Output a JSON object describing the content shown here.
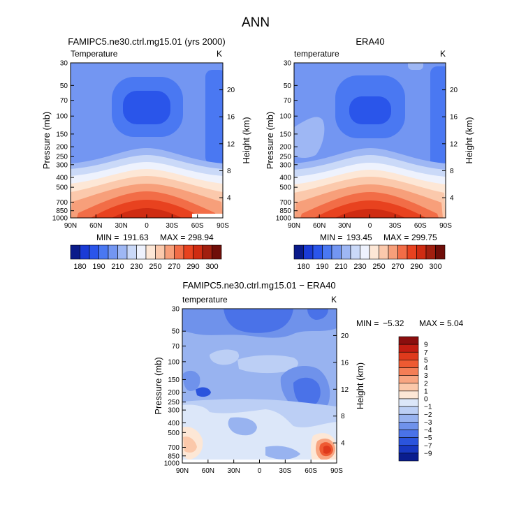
{
  "figure_title": "ANN",
  "chart_data": [
    {
      "type": "heatmap",
      "title": "FAMIPC5.ne30.ctrl.mg15.01 (yrs 2000)",
      "subtitle": "Temperature",
      "units": "K",
      "ylabel": "Pressure (mb)",
      "y2label": "Height (km)",
      "x_ticks": [
        "90N",
        "60N",
        "30N",
        "0",
        "30S",
        "60S",
        "90S"
      ],
      "y_ticks": [
        "30",
        "50",
        "70",
        "100",
        "150",
        "200",
        "250",
        "300",
        "400",
        "500",
        "700",
        "850",
        "1000"
      ],
      "y2_ticks": [
        "20",
        "16",
        "12",
        "8",
        "4"
      ],
      "stats": {
        "min_label": "MIN =",
        "min": "191.63",
        "max_label": "MAX =",
        "max": "298.94"
      },
      "colorbar": {
        "orientation": "horizontal",
        "labels": [
          "180",
          "190",
          "210",
          "230",
          "250",
          "270",
          "290",
          "300"
        ],
        "colors": [
          "#0a1b8a",
          "#1a3bd6",
          "#2a55ea",
          "#4a78f2",
          "#7396f2",
          "#9eb7f4",
          "#cad9f8",
          "#eef2fd",
          "#fde7d6",
          "#fbc9ac",
          "#f79f7a",
          "#f26d47",
          "#e8421f",
          "#cf2c12",
          "#a11f0f",
          "#6f0e09"
        ]
      },
      "field": "control"
    },
    {
      "type": "heatmap",
      "title": "ERA40",
      "subtitle": "temperature",
      "units": "K",
      "ylabel": "Pressure (mb)",
      "y2label": "Height (km)",
      "x_ticks": [
        "90N",
        "60N",
        "30N",
        "0",
        "30S",
        "60S",
        "90S"
      ],
      "y_ticks": [
        "30",
        "50",
        "70",
        "100",
        "150",
        "200",
        "250",
        "300",
        "400",
        "500",
        "700",
        "850",
        "1000"
      ],
      "y2_ticks": [
        "20",
        "16",
        "12",
        "8",
        "4"
      ],
      "stats": {
        "min_label": "MIN =",
        "min": "193.45",
        "max_label": "MAX =",
        "max": "299.75"
      },
      "colorbar": {
        "orientation": "horizontal",
        "labels": [
          "180",
          "190",
          "210",
          "230",
          "250",
          "270",
          "290",
          "300"
        ],
        "colors": [
          "#0a1b8a",
          "#1a3bd6",
          "#2a55ea",
          "#4a78f2",
          "#7396f2",
          "#9eb7f4",
          "#cad9f8",
          "#eef2fd",
          "#fde7d6",
          "#fbc9ac",
          "#f79f7a",
          "#f26d47",
          "#e8421f",
          "#cf2c12",
          "#a11f0f",
          "#6f0e09"
        ]
      },
      "field": "reference"
    },
    {
      "type": "heatmap",
      "title": "FAMIPC5.ne30.ctrl.mg15.01 − ERA40",
      "subtitle": "temperature",
      "units": "K",
      "ylabel": "Pressure (mb)",
      "y2label": "Height (km)",
      "x_ticks": [
        "90N",
        "60N",
        "30N",
        "0",
        "30S",
        "60S",
        "90S"
      ],
      "y_ticks": [
        "30",
        "50",
        "70",
        "100",
        "150",
        "200",
        "250",
        "300",
        "400",
        "500",
        "700",
        "850",
        "1000"
      ],
      "y2_ticks": [
        "20",
        "16",
        "12",
        "8",
        "4"
      ],
      "stats": {
        "min_label": "MIN =",
        "min": "−5.32",
        "max_label": "MAX =",
        "max": "5.04"
      },
      "colorbar": {
        "orientation": "vertical",
        "labels": [
          "9",
          "7",
          "5",
          "4",
          "3",
          "2",
          "1",
          "0",
          "−1",
          "−2",
          "−3",
          "−4",
          "−5",
          "−7",
          "−9"
        ],
        "colors": [
          "#8b0e0e",
          "#c21d12",
          "#df3a1c",
          "#ee5a32",
          "#f47e56",
          "#f8a581",
          "#fbc8aa",
          "#fde7d6",
          "#dce7f9",
          "#bccff5",
          "#98b3f0",
          "#6f92eb",
          "#4a72e8",
          "#2b54dd",
          "#1838c2",
          "#0a1d8f"
        ]
      },
      "field": "difference"
    }
  ]
}
